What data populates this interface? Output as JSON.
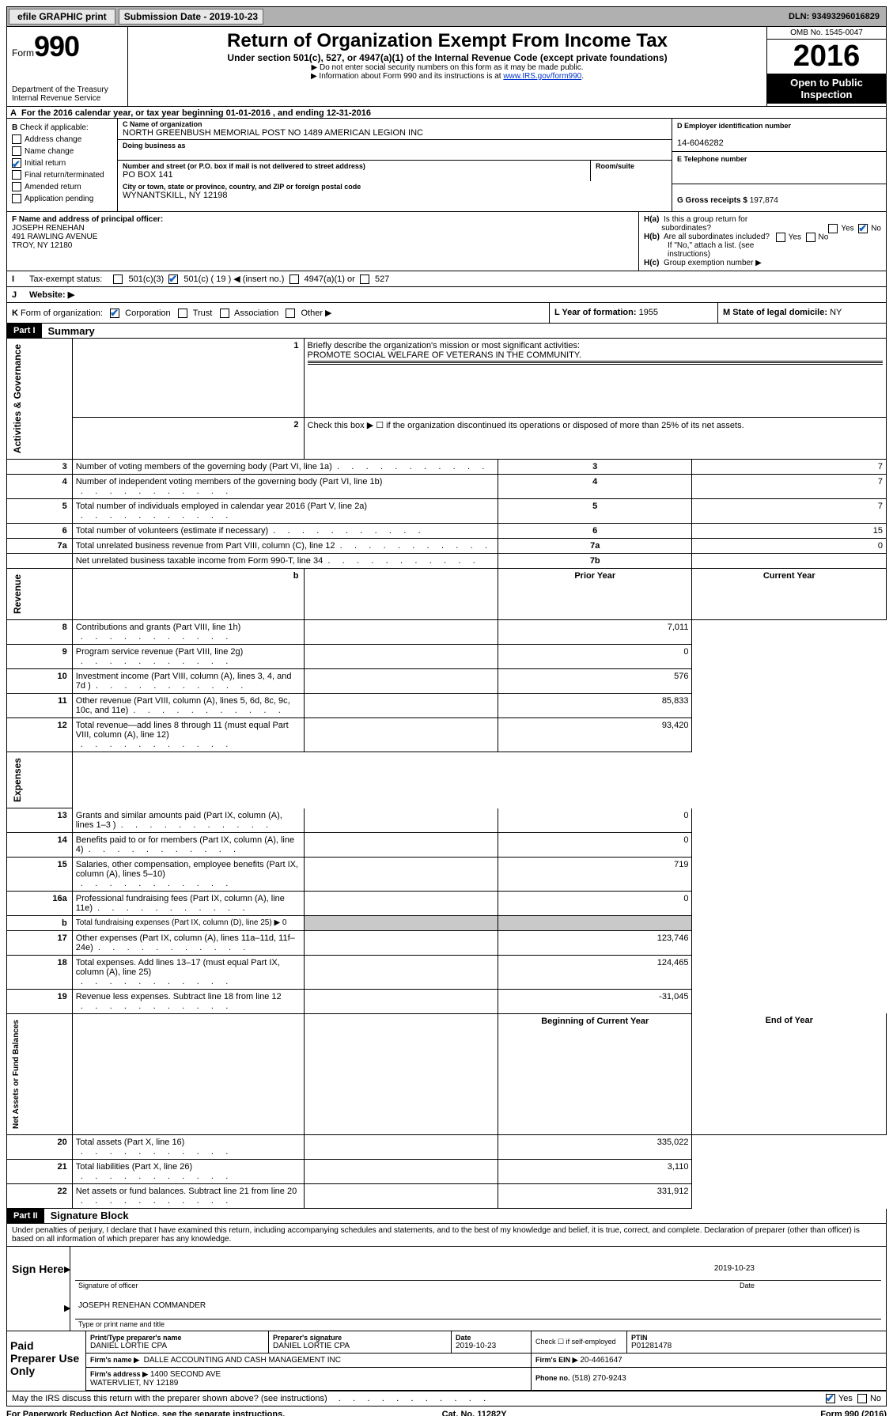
{
  "topbar": {
    "efile": "efile GRAPHIC print",
    "subdate_label": "Submission Date - 2019-10-23",
    "dln": "DLN: 93493296016829"
  },
  "header": {
    "form_word": "Form",
    "form_num": "990",
    "dept": "Department of the Treasury\nInternal Revenue Service",
    "title": "Return of Organization Exempt From Income Tax",
    "sub": "Under section 501(c), 527, or 4947(a)(1) of the Internal Revenue Code (except private foundations)",
    "note1": "▶ Do not enter social security numbers on this form as it may be made public.",
    "note2_pre": "▶ Information about Form 990 and its instructions is at ",
    "note2_link": "www.IRS.gov/form990",
    "omb": "OMB No. 1545-0047",
    "year": "2016",
    "open": "Open to Public Inspection"
  },
  "lineA": "For the 2016 calendar year, or tax year beginning 01-01-2016   , and ending 12-31-2016",
  "B": {
    "lead": "B",
    "intro": "Check if applicable:",
    "items": [
      "Address change",
      "Name change",
      "Initial return",
      "Final return/terminated",
      "Amended return",
      "Application pending"
    ],
    "checked_index": 2
  },
  "C": {
    "name_label": "C Name of organization",
    "name": "NORTH GREENBUSH MEMORIAL POST NO 1489 AMERICAN LEGION INC",
    "dba_label": "Doing business as",
    "addr_label": "Number and street (or P.O. box if mail is not delivered to street address)",
    "room_label": "Room/suite",
    "addr": "PO BOX 141",
    "city_label": "City or town, state or province, country, and ZIP or foreign postal code",
    "city": "WYNANTSKILL, NY  12198"
  },
  "D": {
    "label": "D Employer identification number",
    "val": "14-6046282"
  },
  "E": {
    "label": "E Telephone number",
    "val": ""
  },
  "G": {
    "label": "G Gross receipts $",
    "val": "197,874"
  },
  "F": {
    "label": "F  Name and address of principal officer:",
    "name": "JOSEPH RENEHAN",
    "addr1": "491 RAWLING AVENUE",
    "addr2": "TROY, NY  12180"
  },
  "H": {
    "a": "H(a)  Is this a group return for subordinates?",
    "b": "H(b)  Are all subordinates included?",
    "bnote": "If \"No,\" attach a list. (see instructions)",
    "c": "H(c)  Group exemption number ▶",
    "a_no_checked": true
  },
  "I": {
    "label": "Tax-exempt status:",
    "opts": [
      "501(c)(3)",
      "501(c) ( 19 ) ◀ (insert no.)",
      "4947(a)(1) or",
      "527"
    ],
    "checked_index": 1
  },
  "J": {
    "label": "Website: ▶",
    "val": ""
  },
  "K": {
    "label": "K Form of organization:",
    "opts": [
      "Corporation",
      "Trust",
      "Association",
      "Other ▶"
    ],
    "checked_index": 0
  },
  "L": {
    "label": "L Year of formation:",
    "val": "1955"
  },
  "M": {
    "label": "M State of legal domicile:",
    "val": "NY"
  },
  "part1": {
    "hdr": "Part I",
    "title": "Summary",
    "side_gov": "Activities & Governance",
    "side_rev": "Revenue",
    "side_exp": "Expenses",
    "side_net": "Net Assets or Fund Balances",
    "l1": "Briefly describe the organization's mission or most significant activities:",
    "l1v": "PROMOTE SOCIAL WELFARE OF VETERANS IN THE COMMUNITY.",
    "l2": "Check this box ▶  ☐  if the organization discontinued its operations or disposed of more than 25% of its net assets.",
    "rows_gov": [
      {
        "n": "3",
        "t": "Number of voting members of the governing body (Part VI, line 1a)",
        "box": "3",
        "v": "7"
      },
      {
        "n": "4",
        "t": "Number of independent voting members of the governing body (Part VI, line 1b)",
        "box": "4",
        "v": "7"
      },
      {
        "n": "5",
        "t": "Total number of individuals employed in calendar year 2016 (Part V, line 2a)",
        "box": "5",
        "v": "7"
      },
      {
        "n": "6",
        "t": "Total number of volunteers (estimate if necessary)",
        "box": "6",
        "v": "15"
      },
      {
        "n": "7a",
        "t": "Total unrelated business revenue from Part VIII, column (C), line 12",
        "box": "7a",
        "v": "0"
      },
      {
        "n": "",
        "t": "Net unrelated business taxable income from Form 990-T, line 34",
        "box": "7b",
        "v": ""
      }
    ],
    "hdr_prior": "Prior Year",
    "hdr_curr": "Current Year",
    "rows_rev": [
      {
        "n": "8",
        "t": "Contributions and grants (Part VIII, line 1h)",
        "p": "",
        "c": "7,011"
      },
      {
        "n": "9",
        "t": "Program service revenue (Part VIII, line 2g)",
        "p": "",
        "c": "0"
      },
      {
        "n": "10",
        "t": "Investment income (Part VIII, column (A), lines 3, 4, and 7d )",
        "p": "",
        "c": "576"
      },
      {
        "n": "11",
        "t": "Other revenue (Part VIII, column (A), lines 5, 6d, 8c, 9c, 10c, and 11e)",
        "p": "",
        "c": "85,833"
      },
      {
        "n": "12",
        "t": "Total revenue—add lines 8 through 11 (must equal Part VIII, column (A), line 12)",
        "p": "",
        "c": "93,420"
      }
    ],
    "rows_exp": [
      {
        "n": "13",
        "t": "Grants and similar amounts paid (Part IX, column (A), lines 1–3 )",
        "p": "",
        "c": "0"
      },
      {
        "n": "14",
        "t": "Benefits paid to or for members (Part IX, column (A), line 4)",
        "p": "",
        "c": "0"
      },
      {
        "n": "15",
        "t": "Salaries, other compensation, employee benefits (Part IX, column (A), lines 5–10)",
        "p": "",
        "c": "719"
      },
      {
        "n": "16a",
        "t": "Professional fundraising fees (Part IX, column (A), line 11e)",
        "p": "",
        "c": "0"
      },
      {
        "n": "b",
        "t": "Total fundraising expenses (Part IX, column (D), line 25) ▶ 0",
        "p": "grey",
        "c": "grey",
        "small": true
      },
      {
        "n": "17",
        "t": "Other expenses (Part IX, column (A), lines 11a–11d, 11f–24e)",
        "p": "",
        "c": "123,746"
      },
      {
        "n": "18",
        "t": "Total expenses. Add lines 13–17 (must equal Part IX, column (A), line 25)",
        "p": "",
        "c": "124,465"
      },
      {
        "n": "19",
        "t": "Revenue less expenses. Subtract line 18 from line 12",
        "p": "",
        "c": "-31,045"
      }
    ],
    "hdr_beg": "Beginning of Current Year",
    "hdr_end": "End of Year",
    "rows_net": [
      {
        "n": "20",
        "t": "Total assets (Part X, line 16)",
        "p": "",
        "c": "335,022"
      },
      {
        "n": "21",
        "t": "Total liabilities (Part X, line 26)",
        "p": "",
        "c": "3,110"
      },
      {
        "n": "22",
        "t": "Net assets or fund balances. Subtract line 21 from line 20",
        "p": "",
        "c": "331,912"
      }
    ]
  },
  "part2": {
    "hdr": "Part II",
    "title": "Signature Block",
    "perjury": "Under penalties of perjury, I declare that I have examined this return, including accompanying schedules and statements, and to the best of my knowledge and belief, it is true, correct, and complete. Declaration of preparer (other than officer) is based on all information of which preparer has any knowledge.",
    "sign_here": "Sign Here",
    "sig_label": "Signature of officer",
    "sig_date": "2019-10-23",
    "date_label": "Date",
    "officer_name": "JOSEPH RENEHAN  COMMANDER",
    "officer_label": "Type or print name and title"
  },
  "preparer": {
    "side": "Paid Preparer Use Only",
    "name_label": "Print/Type preparer's name",
    "name": "DANIEL LORTIE CPA",
    "sig_label": "Preparer's signature",
    "sig": "DANIEL LORTIE CPA",
    "date_label": "Date",
    "date": "2019-10-23",
    "self_label": "Check ☐ if self-employed",
    "ptin_label": "PTIN",
    "ptin": "P01281478",
    "firm_name_label": "Firm's name    ▶",
    "firm_name": "DALLE ACCOUNTING AND CASH MANAGEMENT INC",
    "firm_ein_label": "Firm's EIN ▶",
    "firm_ein": "20-4461647",
    "firm_addr_label": "Firm's address ▶",
    "firm_addr": "1400 SECOND AVE\nWATERVLIET, NY  12189",
    "phone_label": "Phone no.",
    "phone": "(518) 270-9243"
  },
  "discuss": {
    "q": "May the IRS discuss this return with the preparer shown above? (see instructions)",
    "yes_checked": true
  },
  "footer": {
    "left": "For Paperwork Reduction Act Notice, see the separate instructions.",
    "mid": "Cat. No. 11282Y",
    "right": "Form 990 (2016)"
  }
}
